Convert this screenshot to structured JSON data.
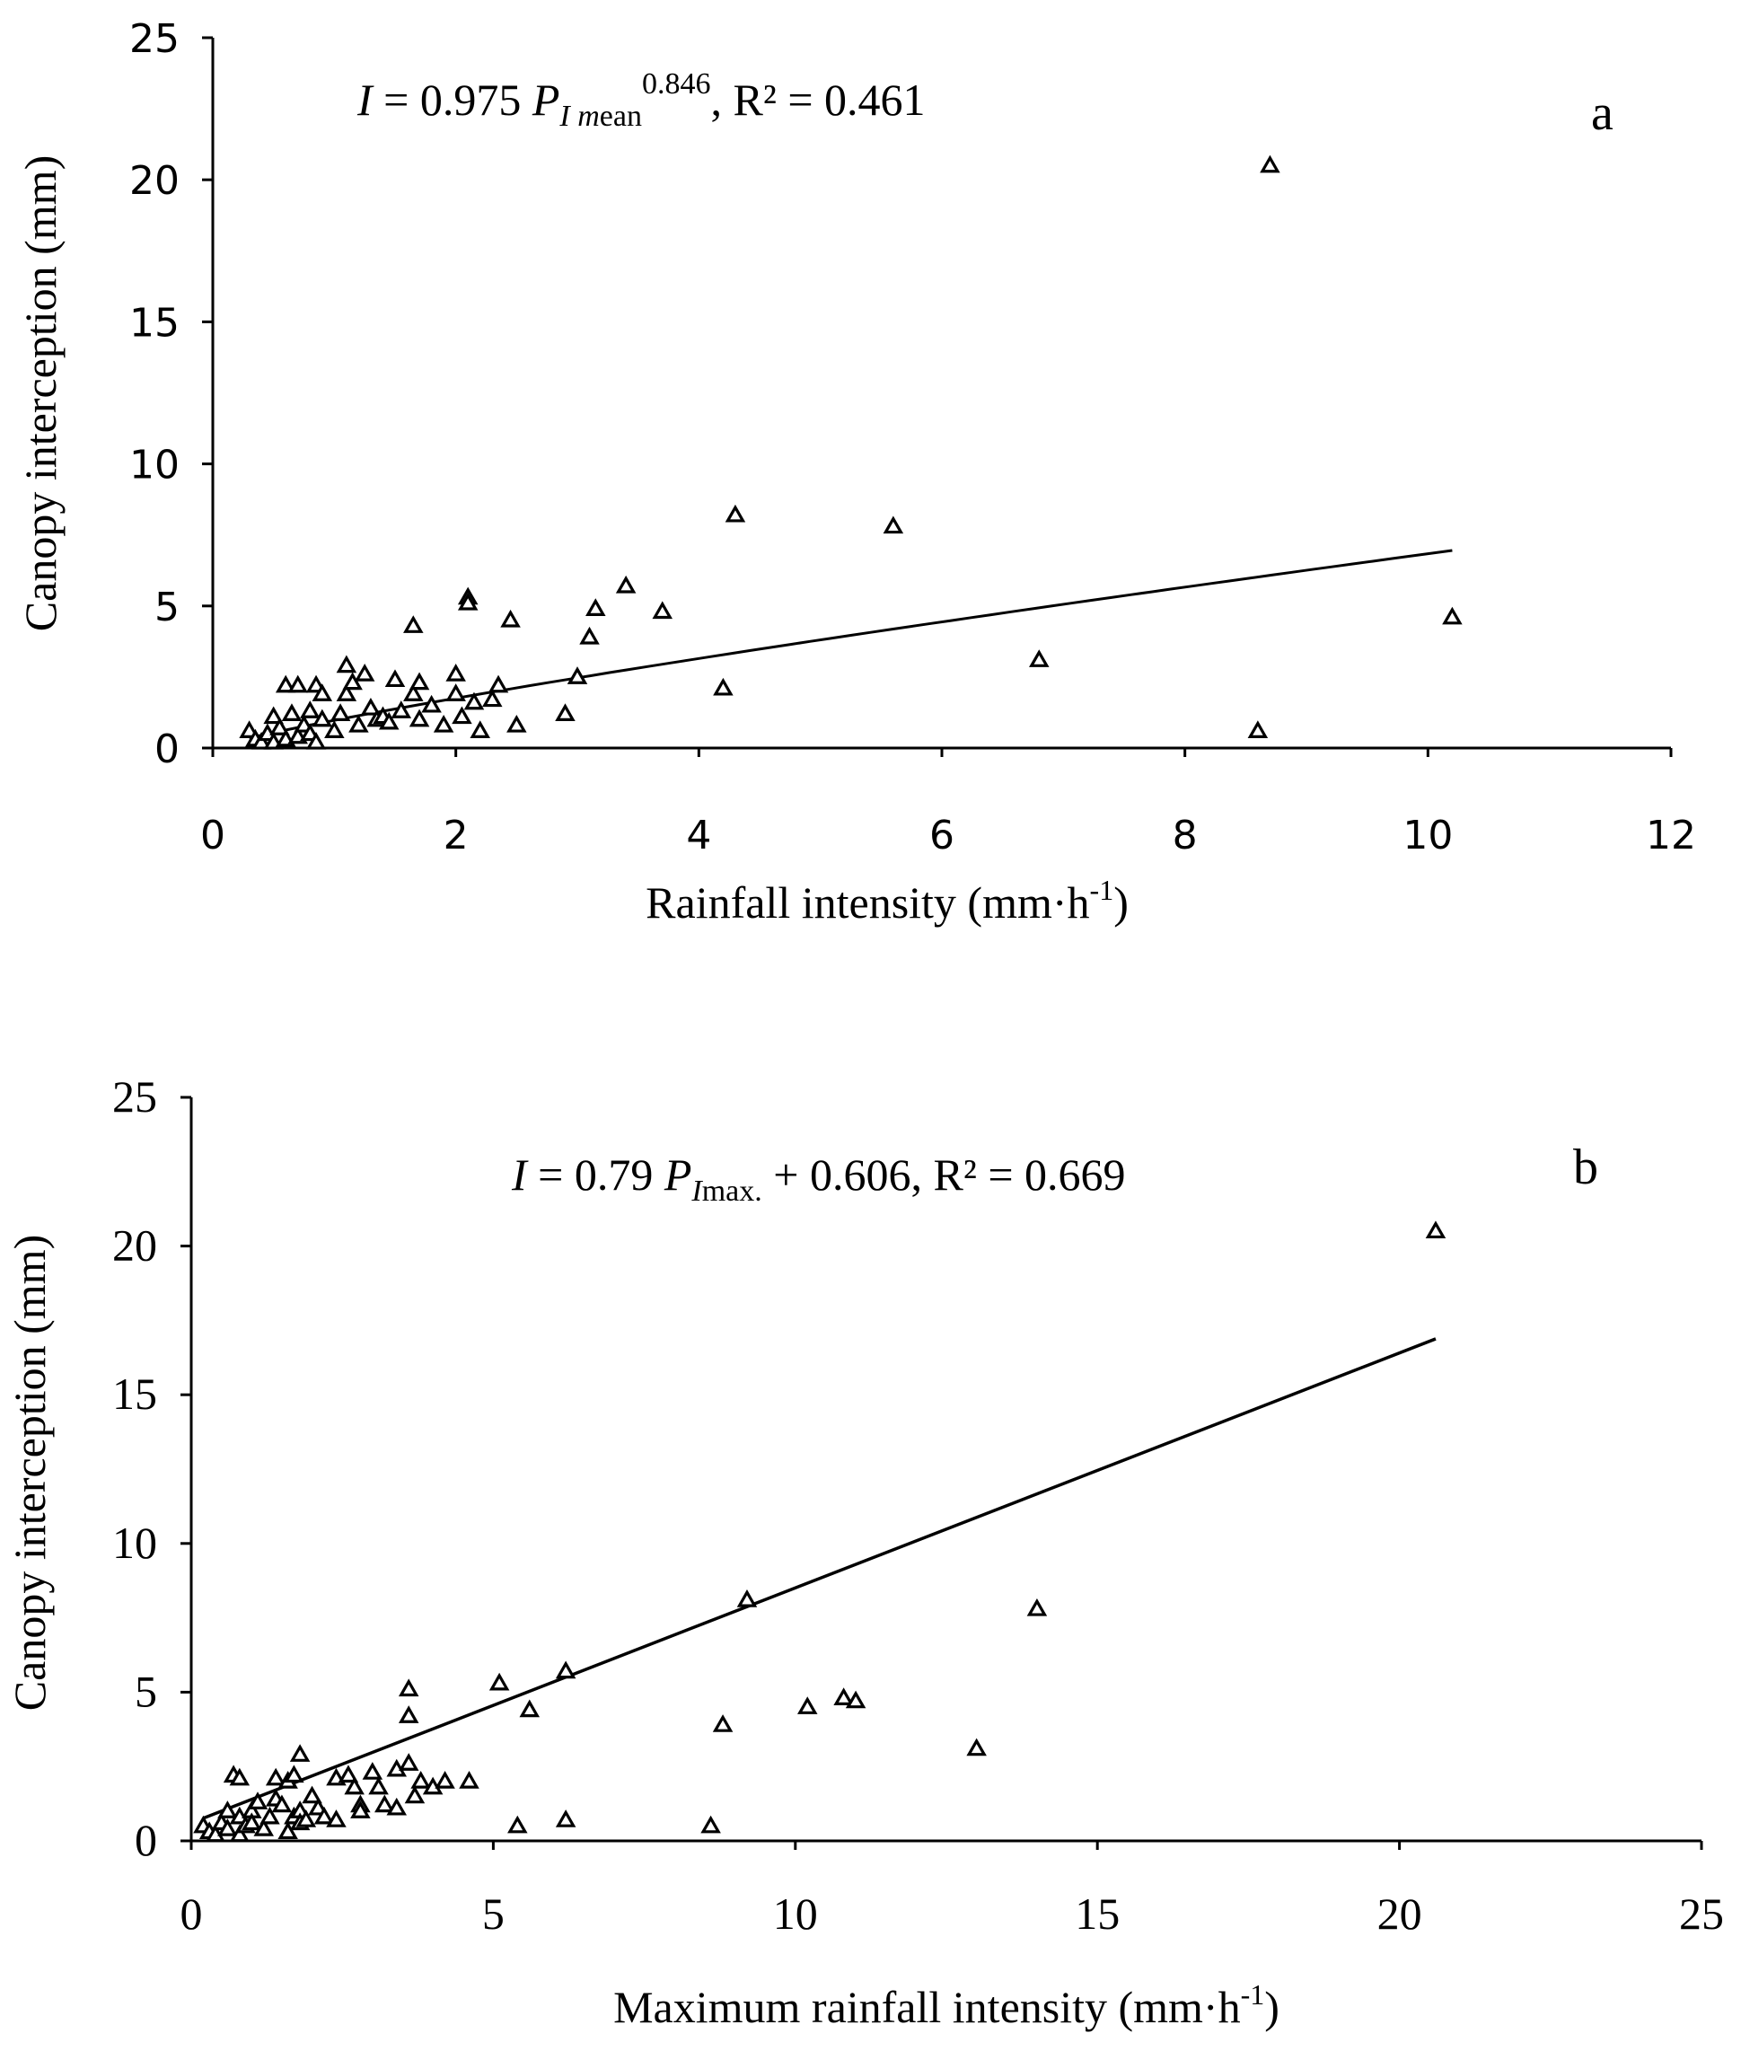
{
  "chart_data": [
    {
      "type": "scatter",
      "panel_label": "a",
      "equation": {
        "lhs": "I",
        "eq": " = 0.975 ",
        "p": "P",
        "sub": "I m",
        "subtail": "ean",
        "sup": "0.846",
        "tail": ", R² = 0.461"
      },
      "xlabel": "Rainfall intensity (mm·h",
      "xlabel_sup": "-1",
      "xlabel_close": ")",
      "ylabel": "Canopy interception (mm)",
      "xlim": [
        0,
        12
      ],
      "ylim": [
        0,
        25
      ],
      "xticks": [
        "0",
        "2",
        "4",
        "6",
        "8",
        "10",
        "12"
      ],
      "yticks": [
        "0",
        "5",
        "10",
        "15",
        "20",
        "25"
      ],
      "fit": {
        "kind": "power",
        "a": 0.975,
        "b": 0.846,
        "x_range": [
          0.3,
          10.2
        ]
      },
      "points": [
        [
          0.3,
          0.6
        ],
        [
          0.35,
          0.3
        ],
        [
          0.4,
          0.2
        ],
        [
          0.45,
          0.5
        ],
        [
          0.5,
          1.1
        ],
        [
          0.5,
          0.2
        ],
        [
          0.55,
          0.7
        ],
        [
          0.6,
          0.3
        ],
        [
          0.6,
          2.2
        ],
        [
          0.65,
          1.2
        ],
        [
          0.7,
          0.4
        ],
        [
          0.7,
          2.2
        ],
        [
          0.75,
          0.8
        ],
        [
          0.8,
          0.5
        ],
        [
          0.8,
          1.3
        ],
        [
          0.85,
          0.2
        ],
        [
          0.85,
          2.2
        ],
        [
          0.9,
          1.0
        ],
        [
          0.9,
          1.9
        ],
        [
          1.0,
          0.6
        ],
        [
          1.05,
          1.2
        ],
        [
          1.1,
          2.9
        ],
        [
          1.1,
          1.9
        ],
        [
          1.15,
          2.3
        ],
        [
          1.2,
          0.8
        ],
        [
          1.25,
          2.6
        ],
        [
          1.3,
          1.4
        ],
        [
          1.35,
          1.0
        ],
        [
          1.4,
          1.1
        ],
        [
          1.45,
          0.9
        ],
        [
          1.5,
          2.4
        ],
        [
          1.55,
          1.3
        ],
        [
          1.65,
          4.3
        ],
        [
          1.65,
          1.9
        ],
        [
          1.7,
          2.3
        ],
        [
          1.7,
          1.0
        ],
        [
          1.8,
          1.5
        ],
        [
          1.9,
          0.8
        ],
        [
          2.0,
          2.6
        ],
        [
          2.0,
          1.9
        ],
        [
          2.05,
          1.1
        ],
        [
          2.1,
          5.3
        ],
        [
          2.1,
          5.1
        ],
        [
          2.15,
          1.6
        ],
        [
          2.2,
          0.6
        ],
        [
          2.3,
          1.7
        ],
        [
          2.35,
          2.2
        ],
        [
          2.45,
          4.5
        ],
        [
          2.5,
          0.8
        ],
        [
          2.9,
          1.2
        ],
        [
          3.0,
          2.5
        ],
        [
          3.1,
          3.9
        ],
        [
          3.15,
          4.9
        ],
        [
          3.4,
          5.7
        ],
        [
          3.7,
          4.8
        ],
        [
          4.2,
          2.1
        ],
        [
          4.3,
          8.2
        ],
        [
          5.6,
          7.8
        ],
        [
          6.8,
          3.1
        ],
        [
          8.6,
          0.6
        ],
        [
          8.7,
          20.5
        ],
        [
          10.2,
          4.6
        ]
      ]
    },
    {
      "type": "scatter",
      "panel_label": "b",
      "equation": {
        "lhs": "I",
        "eq": " = 0.79 ",
        "p": "P",
        "sub": "I",
        "subtail": "max.",
        "sup": "",
        "tail": " + 0.606, R² = 0.669"
      },
      "xlabel": "Maximum rainfall  intensity (mm·h",
      "xlabel_sup": "-1",
      "xlabel_close": ")",
      "ylabel": "Canopy interception (mm)",
      "xlim": [
        0,
        25
      ],
      "ylim": [
        0,
        25
      ],
      "xticks": [
        "0",
        "5",
        "10",
        "15",
        "20",
        "25"
      ],
      "yticks": [
        "0",
        "5",
        "10",
        "15",
        "20",
        "25"
      ],
      "fit": {
        "kind": "linear",
        "slope": 0.79,
        "intercept": 0.606,
        "x_range": [
          0.2,
          20.6
        ]
      },
      "points": [
        [
          0.2,
          0.5
        ],
        [
          0.3,
          0.3
        ],
        [
          0.4,
          0.2
        ],
        [
          0.5,
          0.6
        ],
        [
          0.6,
          0.4
        ],
        [
          0.6,
          1.0
        ],
        [
          0.7,
          2.2
        ],
        [
          0.8,
          0.8
        ],
        [
          0.8,
          0.2
        ],
        [
          0.8,
          2.1
        ],
        [
          0.9,
          0.5
        ],
        [
          1.0,
          1.0
        ],
        [
          1.0,
          0.6
        ],
        [
          1.1,
          1.3
        ],
        [
          1.2,
          0.4
        ],
        [
          1.3,
          0.8
        ],
        [
          1.4,
          2.1
        ],
        [
          1.4,
          1.4
        ],
        [
          1.5,
          1.2
        ],
        [
          1.6,
          2.0
        ],
        [
          1.6,
          0.3
        ],
        [
          1.7,
          0.8
        ],
        [
          1.7,
          2.2
        ],
        [
          1.8,
          1.0
        ],
        [
          1.8,
          0.6
        ],
        [
          1.8,
          2.9
        ],
        [
          1.9,
          0.7
        ],
        [
          2.0,
          1.5
        ],
        [
          2.1,
          1.1
        ],
        [
          2.2,
          0.8
        ],
        [
          2.4,
          0.7
        ],
        [
          2.4,
          2.1
        ],
        [
          2.6,
          2.2
        ],
        [
          2.7,
          1.8
        ],
        [
          2.8,
          1.2
        ],
        [
          2.8,
          1.0
        ],
        [
          3.0,
          2.3
        ],
        [
          3.1,
          1.8
        ],
        [
          3.2,
          1.2
        ],
        [
          3.4,
          1.1
        ],
        [
          3.4,
          2.4
        ],
        [
          3.6,
          2.6
        ],
        [
          3.6,
          4.2
        ],
        [
          3.6,
          5.1
        ],
        [
          3.7,
          1.5
        ],
        [
          3.8,
          2.0
        ],
        [
          4.0,
          1.8
        ],
        [
          4.2,
          2.0
        ],
        [
          4.6,
          2.0
        ],
        [
          5.1,
          5.3
        ],
        [
          5.4,
          0.5
        ],
        [
          5.6,
          4.4
        ],
        [
          6.2,
          5.7
        ],
        [
          6.2,
          0.7
        ],
        [
          8.6,
          0.5
        ],
        [
          8.8,
          3.9
        ],
        [
          9.2,
          8.1
        ],
        [
          10.2,
          4.5
        ],
        [
          10.8,
          4.8
        ],
        [
          11.0,
          4.7
        ],
        [
          13.0,
          3.1
        ],
        [
          14.0,
          7.8
        ],
        [
          20.6,
          20.5
        ]
      ]
    }
  ]
}
